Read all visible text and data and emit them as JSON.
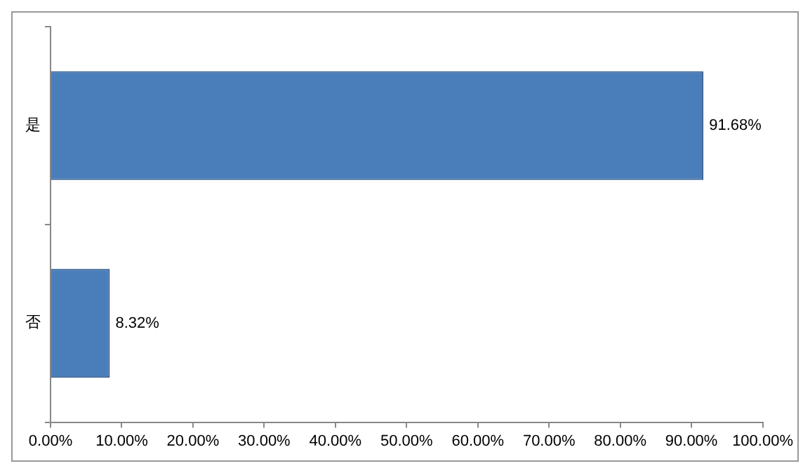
{
  "chart_data": {
    "type": "bar",
    "orientation": "horizontal",
    "categories": [
      "是",
      "否"
    ],
    "values": [
      91.68,
      8.32
    ],
    "value_labels": [
      "91.68%",
      "8.32%"
    ],
    "color": "#4a7ebb",
    "xlim": [
      0,
      100
    ],
    "xticks": [
      {
        "value": 0,
        "label": "0.00%"
      },
      {
        "value": 10,
        "label": "10.00%"
      },
      {
        "value": 20,
        "label": "20.00%"
      },
      {
        "value": 30,
        "label": "30.00%"
      },
      {
        "value": 40,
        "label": "40.00%"
      },
      {
        "value": 50,
        "label": "50.00%"
      },
      {
        "value": 60,
        "label": "60.00%"
      },
      {
        "value": 70,
        "label": "70.00%"
      },
      {
        "value": 80,
        "label": "80.00%"
      },
      {
        "value": 90,
        "label": "90.00%"
      },
      {
        "value": 100,
        "label": "100.00%"
      }
    ],
    "grid": false,
    "legend": false
  }
}
